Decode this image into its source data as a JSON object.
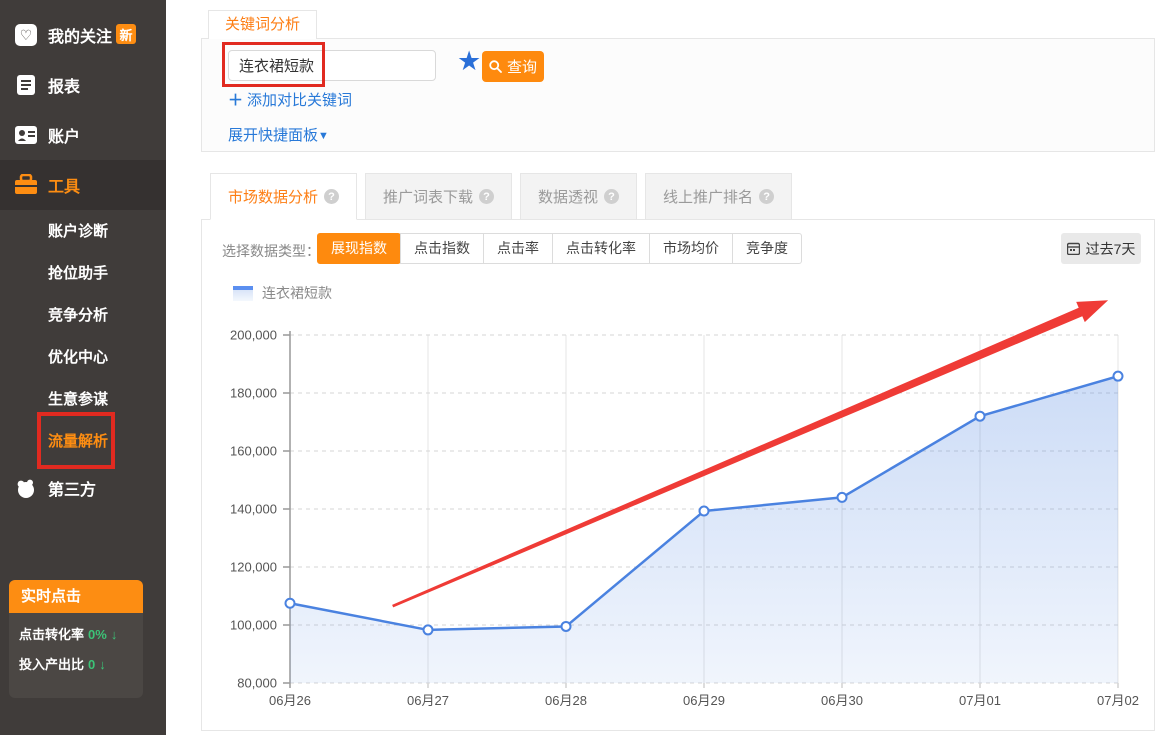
{
  "icons": {
    "help": "?",
    "star": "★",
    "plus": "＋",
    "caret_down": "▼",
    "down_arrow": "↓",
    "heart": "♡"
  },
  "sidebar": {
    "items": [
      {
        "label": "我的关注",
        "badge": "新",
        "icon": "heart-icon"
      },
      {
        "label": "报表",
        "icon": "report-icon"
      },
      {
        "label": "账户",
        "icon": "account-card-icon"
      },
      {
        "label": "工具",
        "icon": "briefcase-icon",
        "active": true
      }
    ],
    "submenu": [
      {
        "label": "账户诊断"
      },
      {
        "label": "抢位助手"
      },
      {
        "label": "竞争分析"
      },
      {
        "label": "优化中心"
      },
      {
        "label": "生意参谋"
      },
      {
        "label": "流量解析",
        "active": true,
        "highlighted": true
      }
    ],
    "third_party": {
      "label": "第三方",
      "icon": "blob-icon"
    },
    "realtime": {
      "title": "实时点击",
      "rows": [
        {
          "label": "点击转化率",
          "value": "0%",
          "trend": "↓"
        },
        {
          "label": "投入产出比",
          "value": "0",
          "trend": "↓"
        }
      ]
    }
  },
  "keyword_panel": {
    "tab": "关键词分析",
    "input_value": "连衣裙短款",
    "query_label": "查询",
    "add_compare_label": "添加对比关键词",
    "expand_label": "展开快捷面板"
  },
  "main_tabs": [
    {
      "label": "市场数据分析",
      "active": true
    },
    {
      "label": "推广词表下载"
    },
    {
      "label": "数据透视"
    },
    {
      "label": "线上推广排名"
    }
  ],
  "data_type": {
    "label": "选择数据类型：",
    "options": [
      {
        "label": "展现指数",
        "active": true
      },
      {
        "label": "点击指数"
      },
      {
        "label": "点击率"
      },
      {
        "label": "点击转化率"
      },
      {
        "label": "市场均价"
      },
      {
        "label": "竞争度"
      }
    ]
  },
  "date_range": {
    "label": "过去7天"
  },
  "chart_data": {
    "type": "line",
    "title": "",
    "x": [
      "06月26",
      "06月27",
      "06月28",
      "06月29",
      "06月30",
      "07月01",
      "07月02"
    ],
    "series": [
      {
        "name": "连衣裙短款",
        "values": [
          107500,
          98300,
          99500,
          139300,
          144000,
          172000,
          185800
        ],
        "color": "#4a82e0",
        "area": true
      }
    ],
    "ylim": [
      80000,
      200000
    ],
    "yticks": [
      80000,
      100000,
      120000,
      140000,
      160000,
      180000,
      200000
    ],
    "grid": true,
    "legend_position": "top-left",
    "annotation_arrow": {
      "color": "#ef3b36",
      "from": {
        "x_frac": 0.124,
        "value": 106500
      },
      "to": {
        "x_frac": 0.988,
        "value": 212000
      }
    }
  },
  "colors": {
    "accent": "#fd8d12",
    "link": "#2879d8",
    "line": "#4a82e0",
    "annotation_red": "#e12a20",
    "positive_green": "#3cc377",
    "sidebar_bg": "#403c3a"
  }
}
